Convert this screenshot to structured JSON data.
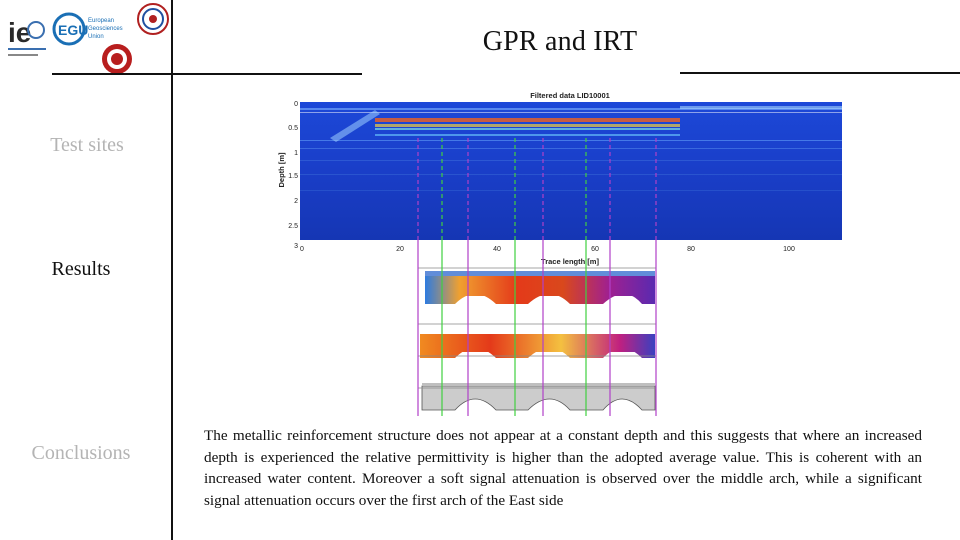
{
  "slide": {
    "title": "GPR and IRT",
    "nav": {
      "test_sites": "Test sites",
      "results": "Results",
      "conclusions": "Conclusions"
    },
    "body_text": "The metallic reinforcement structure does not appear at a constant depth and this suggests that where an increased depth is experienced the relative permittivity is higher than the adopted average value. This is coherent with an increased water content. Moreover a soft signal attenuation is observed over the middle arch, while a significant signal attenuation occurs over the first arch of the East side"
  },
  "logos": {
    "logo1_letters": "ie",
    "egu_letters": "EGU",
    "egu_text_1": "European",
    "egu_text_2": "Geosciences",
    "egu_text_3": "Union"
  },
  "radargram": {
    "title": "Filtered data LID10001",
    "xlabel": "Trace length [m]",
    "ylabel": "Depth [m]",
    "xticks": [
      "0",
      "20",
      "40",
      "60",
      "80",
      "100"
    ],
    "yticks": [
      "0",
      "0.5",
      "1",
      "1.5",
      "2",
      "2.5",
      "3"
    ]
  },
  "colors": {
    "gpr_background": "#1a3ec8",
    "purple_guides": "#b040c8",
    "green_guides": "#40d040",
    "thermal_hot": "#e43a1a",
    "thermal_cold": "#2d7be0"
  }
}
